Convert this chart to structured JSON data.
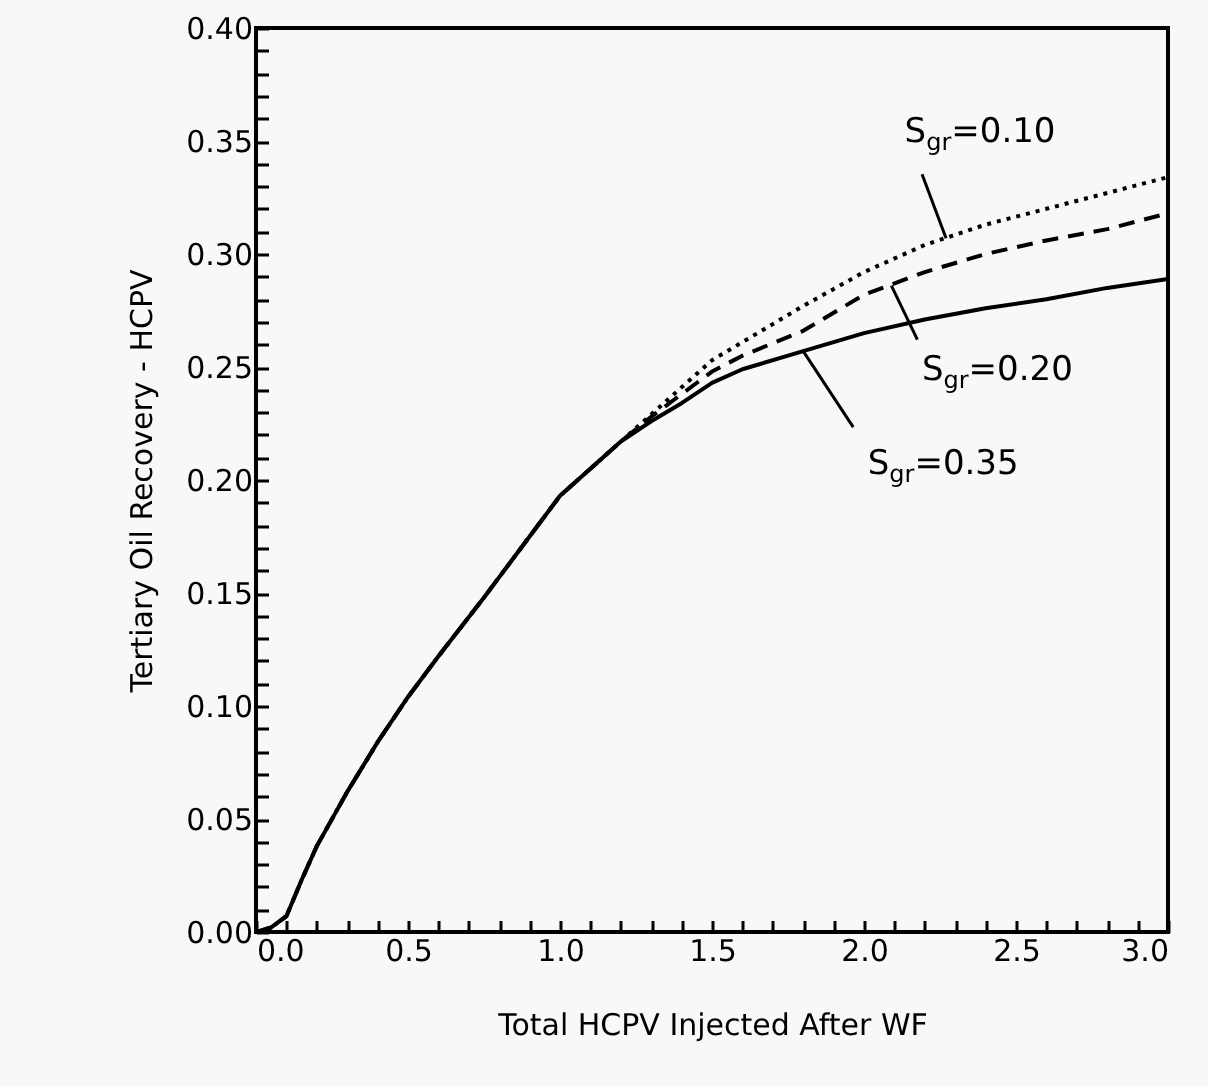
{
  "chart_data": {
    "type": "line",
    "xlabel": "Total HCPV Injected After WF",
    "ylabel": "Tertiary Oil Recovery - HCPV",
    "x": [
      0,
      0.05,
      0.1,
      0.15,
      0.2,
      0.3,
      0.4,
      0.5,
      0.6,
      0.75,
      0.9,
      1.0,
      1.1,
      1.2,
      1.3,
      1.4,
      1.5,
      1.6,
      1.8,
      2.0,
      2.2,
      2.4,
      2.6,
      2.8,
      3.0
    ],
    "series": [
      {
        "color": "#000000",
        "line_style": "dotted",
        "values": [
          0,
          0.002,
          0.007,
          0.023,
          0.038,
          0.062,
          0.084,
          0.104,
          0.122,
          0.148,
          0.175,
          0.193,
          0.205,
          0.217,
          0.229,
          0.241,
          0.253,
          0.261,
          0.277,
          0.292,
          0.304,
          0.313,
          0.32,
          0.327,
          0.334
        ]
      },
      {
        "color": "#000000",
        "line_style": "dashed",
        "values": [
          0,
          0.002,
          0.007,
          0.023,
          0.038,
          0.062,
          0.084,
          0.104,
          0.122,
          0.148,
          0.175,
          0.193,
          0.205,
          0.217,
          0.228,
          0.238,
          0.248,
          0.255,
          0.266,
          0.282,
          0.292,
          0.3,
          0.306,
          0.311,
          0.318
        ]
      },
      {
        "color": "#000000",
        "line_style": "solid",
        "values": [
          0,
          0.002,
          0.007,
          0.023,
          0.038,
          0.062,
          0.084,
          0.104,
          0.122,
          0.148,
          0.175,
          0.193,
          0.205,
          0.217,
          0.226,
          0.234,
          0.243,
          0.249,
          0.257,
          0.265,
          0.271,
          0.276,
          0.28,
          0.285,
          0.289
        ]
      }
    ],
    "xlim": [
      0,
      3
    ],
    "xticks": [
      {
        "value": 0,
        "label": "0.0"
      },
      {
        "value": 0.1,
        "label": null
      },
      {
        "value": 0.2,
        "label": null
      },
      {
        "value": 0.3,
        "label": null
      },
      {
        "value": 0.4,
        "label": null
      },
      {
        "value": 0.5,
        "label": "0.5"
      },
      {
        "value": 0.6,
        "label": null
      },
      {
        "value": 0.7,
        "label": null
      },
      {
        "value": 0.8,
        "label": null
      },
      {
        "value": 0.9,
        "label": null
      },
      {
        "value": 1,
        "label": "1.0"
      },
      {
        "value": 1.1,
        "label": null
      },
      {
        "value": 1.2,
        "label": null
      },
      {
        "value": 1.3,
        "label": null
      },
      {
        "value": 1.4,
        "label": null
      },
      {
        "value": 1.5,
        "label": "1.5"
      },
      {
        "value": 1.6,
        "label": null
      },
      {
        "value": 1.7,
        "label": null
      },
      {
        "value": 1.8,
        "label": null
      },
      {
        "value": 1.9,
        "label": null
      },
      {
        "value": 2,
        "label": "2.0"
      },
      {
        "value": 2.1,
        "label": null
      },
      {
        "value": 2.2,
        "label": null
      },
      {
        "value": 2.3,
        "label": null
      },
      {
        "value": 2.4,
        "label": null
      },
      {
        "value": 2.5,
        "label": "2.5"
      },
      {
        "value": 2.6,
        "label": null
      },
      {
        "value": 2.7,
        "label": null
      },
      {
        "value": 2.8,
        "label": null
      },
      {
        "value": 2.9,
        "label": null
      },
      {
        "value": 3,
        "label": "3.0"
      }
    ],
    "ylim": [
      0,
      0.4
    ],
    "yticks": [
      {
        "value": 0,
        "label": "0.00"
      },
      {
        "value": 0.01,
        "label": null
      },
      {
        "value": 0.02,
        "label": null
      },
      {
        "value": 0.03,
        "label": null
      },
      {
        "value": 0.04,
        "label": null
      },
      {
        "value": 0.05,
        "label": "0.05"
      },
      {
        "value": 0.06,
        "label": null
      },
      {
        "value": 0.07,
        "label": null
      },
      {
        "value": 0.08,
        "label": null
      },
      {
        "value": 0.09,
        "label": null
      },
      {
        "value": 0.1,
        "label": "0.10"
      },
      {
        "value": 0.11,
        "label": null
      },
      {
        "value": 0.12,
        "label": null
      },
      {
        "value": 0.13,
        "label": null
      },
      {
        "value": 0.14,
        "label": null
      },
      {
        "value": 0.15,
        "label": "0.15"
      },
      {
        "value": 0.16,
        "label": null
      },
      {
        "value": 0.17,
        "label": null
      },
      {
        "value": 0.18,
        "label": null
      },
      {
        "value": 0.19,
        "label": null
      },
      {
        "value": 0.2,
        "label": "0.20"
      },
      {
        "value": 0.21,
        "label": null
      },
      {
        "value": 0.22,
        "label": null
      },
      {
        "value": 0.23,
        "label": null
      },
      {
        "value": 0.24,
        "label": null
      },
      {
        "value": 0.25,
        "label": "0.25"
      },
      {
        "value": 0.26,
        "label": null
      },
      {
        "value": 0.27,
        "label": null
      },
      {
        "value": 0.28,
        "label": null
      },
      {
        "value": 0.29,
        "label": null
      },
      {
        "value": 0.3,
        "label": "0.30"
      },
      {
        "value": 0.31,
        "label": null
      },
      {
        "value": 0.32,
        "label": null
      },
      {
        "value": 0.33,
        "label": null
      },
      {
        "value": 0.34,
        "label": null
      },
      {
        "value": 0.35,
        "label": "0.35"
      },
      {
        "value": 0.36,
        "label": null
      },
      {
        "value": 0.37,
        "label": null
      },
      {
        "value": 0.38,
        "label": null
      },
      {
        "value": 0.39,
        "label": null
      },
      {
        "value": 0.4,
        "label": "0.40"
      }
    ],
    "annotations": [
      {
        "text": "S$_{gr}$=0.10",
        "x": 2.27,
        "y": 0.307
      },
      {
        "text": "S$_{gr}$=0.20",
        "x": 2.09,
        "y": 0.286
      },
      {
        "text": "S$_{gr}$=0.35",
        "x": 1.8,
        "y": 0.257
      }
    ],
    "grid": false
  }
}
